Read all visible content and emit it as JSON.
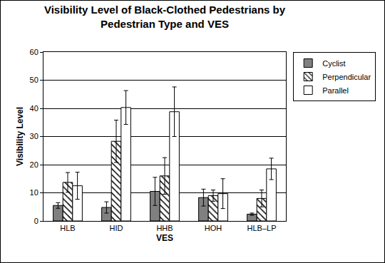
{
  "chart_data": {
    "type": "bar",
    "title": "Visibility Level of Black-Clothed Pedestrians by\nPedestrian Type and VES",
    "x_label": "VES",
    "y_label": "Visibility Level",
    "categories": [
      "HLB",
      "HID",
      "HHB",
      "HOH",
      "HLB–LP"
    ],
    "series": [
      {
        "name": "Cyclist",
        "color": "#808080",
        "values": [
          5.5,
          4.8,
          10.5,
          8.3,
          2.4
        ],
        "errors": [
          1.0,
          2.0,
          5.0,
          3.0,
          0.4
        ]
      },
      {
        "name": "Perpendicular",
        "color": "#ffffff",
        "marker": "hatched",
        "values": [
          13.7,
          28.3,
          16.0,
          9.0,
          8.0
        ],
        "errors": [
          3.5,
          7.5,
          6.5,
          2.0,
          3.0
        ]
      },
      {
        "name": "Parallel",
        "color": "#ffffff",
        "values": [
          12.5,
          40.3,
          38.8,
          9.7,
          18.5
        ],
        "errors": [
          4.8,
          6.0,
          8.8,
          5.3,
          3.8
        ]
      }
    ],
    "ylim": [
      0,
      60
    ],
    "yticks": [
      0,
      10,
      20,
      30,
      40,
      50,
      60
    ],
    "grid": true,
    "legend": "right"
  }
}
